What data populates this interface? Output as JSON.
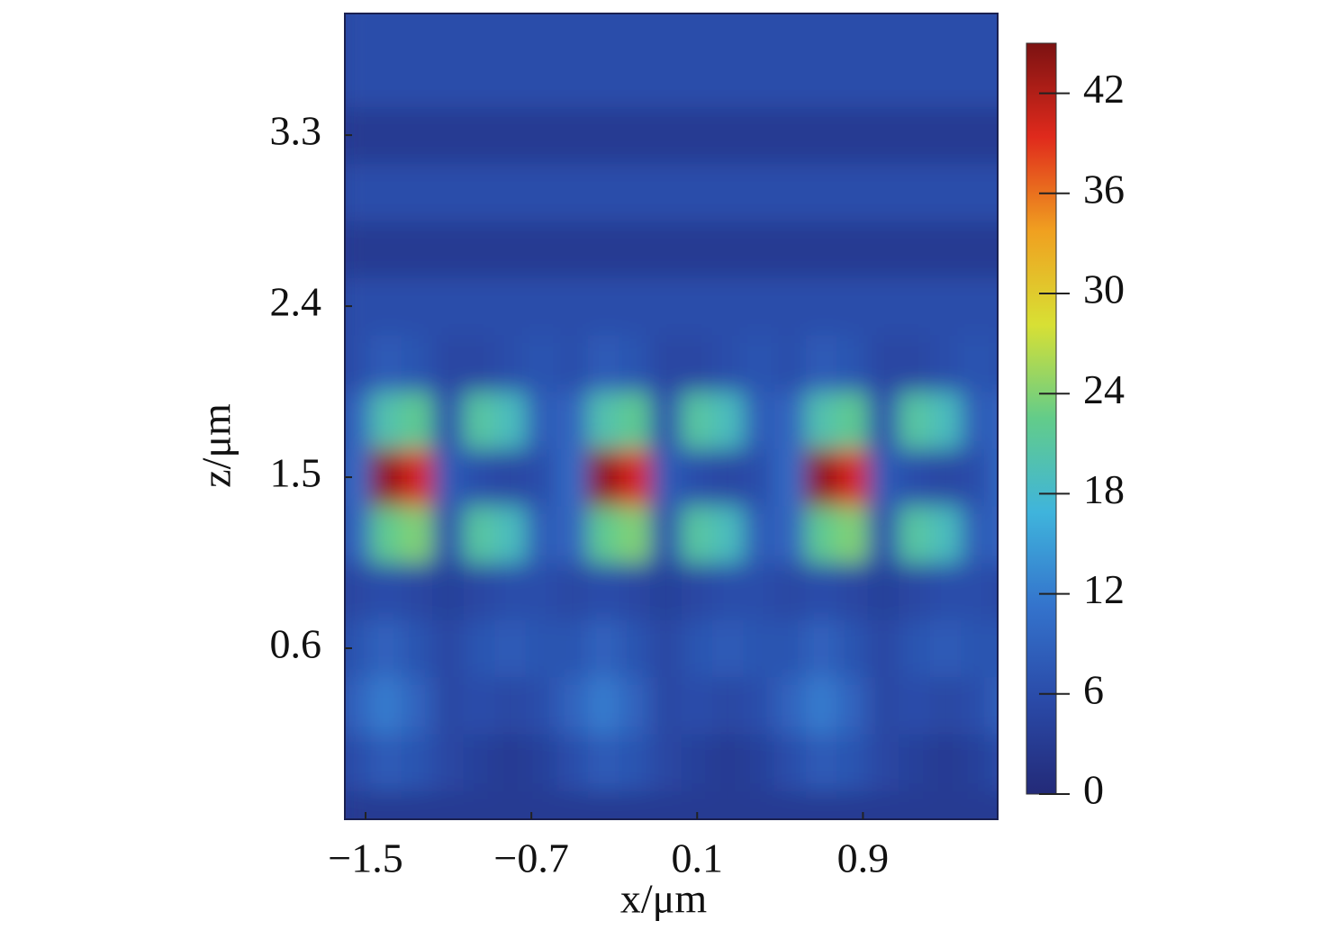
{
  "chart_data": {
    "type": "heatmap",
    "xlabel": "x/μm",
    "ylabel": "z/μm",
    "xlim": [
      -1.6,
      1.55
    ],
    "ylim": [
      -0.3,
      3.94
    ],
    "xticks": [
      {
        "value": -1.5,
        "label": "−1.5"
      },
      {
        "value": -0.7,
        "label": "−0.7"
      },
      0.1,
      0.9
    ],
    "yticks": [
      0.6,
      1.5,
      2.4,
      3.3
    ],
    "clim": [
      0,
      45
    ],
    "cticks": [
      0,
      6,
      12,
      18,
      24,
      30,
      36,
      42
    ],
    "colormap": [
      "#232a78",
      "#2a4aa8",
      "#3473cc",
      "#3fb4dc",
      "#62cc8a",
      "#d8e034",
      "#f0a020",
      "#e02a1c",
      "#7c1212"
    ],
    "x": [
      -1.55,
      -1.4,
      -1.25,
      -1.1,
      -0.95,
      -0.8,
      -0.65,
      -0.5,
      -0.35,
      -0.2,
      -0.05,
      0.1,
      0.25,
      0.4,
      0.55,
      0.7,
      0.85,
      1.0,
      1.15,
      1.3,
      1.45,
      1.6
    ],
    "y": [
      -0.3,
      0,
      0.3,
      0.6,
      0.9,
      1.2,
      1.5,
      1.8,
      2.1,
      2.4,
      2.7,
      3.0,
      3.3,
      3.6,
      3.9
    ],
    "values": [
      [
        3,
        3,
        3,
        3,
        3,
        3,
        3,
        3,
        3,
        3,
        3,
        3,
        3,
        3,
        3,
        3,
        3,
        3,
        3,
        3,
        3,
        3
      ],
      [
        6,
        8,
        7,
        5,
        4,
        3,
        4,
        6,
        8,
        7,
        5,
        4,
        3,
        4,
        6,
        8,
        7,
        5,
        4,
        3,
        4,
        6
      ],
      [
        9,
        12,
        9,
        5,
        6,
        5,
        6,
        9,
        12,
        9,
        5,
        6,
        5,
        6,
        9,
        12,
        9,
        5,
        6,
        5,
        6,
        9
      ],
      [
        7,
        9,
        7,
        5,
        7,
        8,
        7,
        7,
        9,
        7,
        5,
        7,
        8,
        7,
        7,
        9,
        7,
        5,
        7,
        8,
        7,
        7
      ],
      [
        5,
        6,
        5,
        4,
        5,
        6,
        6,
        5,
        6,
        5,
        4,
        5,
        6,
        6,
        5,
        6,
        5,
        4,
        5,
        6,
        6,
        5
      ],
      [
        9,
        22,
        24,
        6,
        21,
        19,
        8,
        9,
        22,
        24,
        6,
        21,
        19,
        8,
        9,
        22,
        24,
        6,
        21,
        19,
        8,
        9
      ],
      [
        10,
        44,
        40,
        8,
        6,
        5,
        6,
        10,
        44,
        40,
        8,
        6,
        5,
        6,
        10,
        44,
        40,
        8,
        6,
        5,
        6,
        10
      ],
      [
        9,
        20,
        22,
        6,
        21,
        19,
        8,
        9,
        20,
        22,
        6,
        21,
        19,
        8,
        9,
        20,
        22,
        6,
        21,
        19,
        8,
        9
      ],
      [
        6,
        8,
        7,
        5,
        5,
        6,
        7,
        6,
        8,
        7,
        5,
        5,
        6,
        7,
        6,
        8,
        7,
        5,
        5,
        6,
        7,
        6
      ],
      [
        6,
        6,
        6,
        6,
        6,
        6,
        6,
        6,
        6,
        6,
        6,
        6,
        6,
        6,
        6,
        6,
        6,
        6,
        6,
        6,
        6,
        6
      ],
      [
        3,
        3,
        3,
        3,
        3,
        3,
        3,
        3,
        3,
        3,
        3,
        3,
        3,
        3,
        3,
        3,
        3,
        3,
        3,
        3,
        3,
        3
      ],
      [
        6,
        6,
        6,
        6,
        6,
        6,
        6,
        6,
        6,
        6,
        6,
        6,
        6,
        6,
        6,
        6,
        6,
        6,
        6,
        6,
        6,
        6
      ],
      [
        3,
        3,
        3,
        3,
        3,
        3,
        3,
        3,
        3,
        3,
        3,
        3,
        3,
        3,
        3,
        3,
        3,
        3,
        3,
        3,
        3,
        3
      ],
      [
        6,
        6,
        6,
        6,
        6,
        6,
        6,
        6,
        6,
        6,
        6,
        6,
        6,
        6,
        6,
        6,
        6,
        6,
        6,
        6,
        6,
        6
      ],
      [
        6,
        6,
        6,
        6,
        6,
        6,
        6,
        6,
        6,
        6,
        6,
        6,
        6,
        6,
        6,
        6,
        6,
        6,
        6,
        6,
        6,
        6
      ]
    ]
  }
}
